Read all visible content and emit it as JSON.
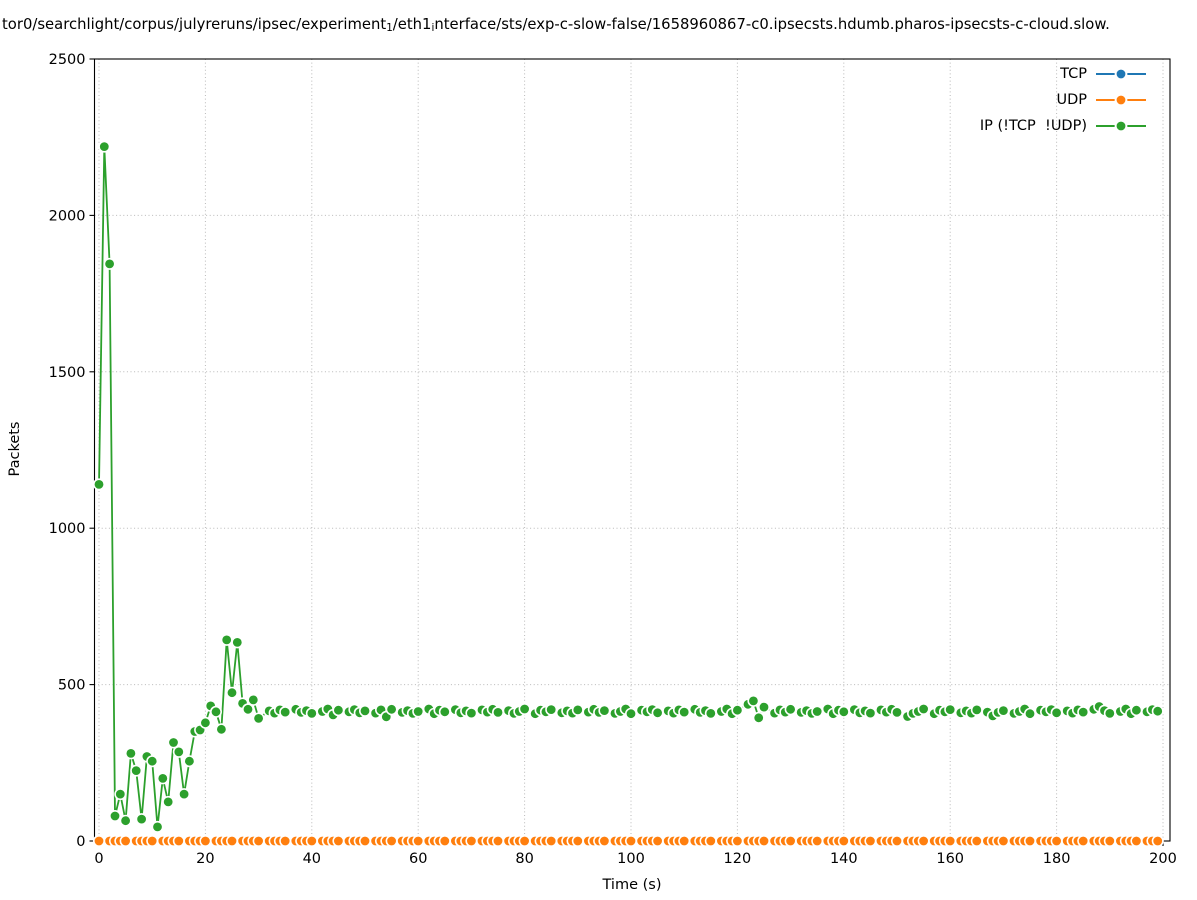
{
  "title": {
    "parts": [
      {
        "text": "tor0/searchlight/corpus/julyreruns/ipsec/experiment",
        "sub": false
      },
      {
        "text": "1",
        "sub": true
      },
      {
        "text": "/eth1",
        "sub": false
      },
      {
        "text": "i",
        "sub": true
      },
      {
        "text": "nterface/sts/exp-c-slow-false/1658960867-c0.ipsecsts.hdumb.pharos-ipsecsts-c-cloud.slow.",
        "sub": false
      }
    ]
  },
  "axes": {
    "xlabel": "Time (s)",
    "ylabel": "Packets",
    "x_ticks": [
      0,
      20,
      40,
      60,
      80,
      100,
      120,
      140,
      160,
      180,
      200
    ],
    "y_ticks": [
      0,
      500,
      1000,
      1500,
      2000,
      2500
    ]
  },
  "legend": {
    "entries": [
      {
        "label": "TCP",
        "color": "#1f77b4"
      },
      {
        "label": "UDP",
        "color": "#ff7f0e"
      },
      {
        "label": "IP (!TCP  !UDP)",
        "color": "#2ca02c"
      }
    ]
  },
  "chart_data": {
    "type": "line",
    "title": "tor0/searchlight/corpus/julyreruns/ipsec/experiment_1/eth1_interface/sts/exp-c-slow-false/1658960867-c0.ipsecsts.hdumb.pharos-ipsecsts-c-cloud.slow.",
    "xlabel": "Time (s)",
    "ylabel": "Packets",
    "xlim": [
      -0.85,
      201.3
    ],
    "ylim": [
      0,
      2500
    ],
    "grid": "dotted at major ticks",
    "grid_color": "#b9b9b9",
    "legend_position": "upper right",
    "marker": "o",
    "marker_edge_color": "#ffffff",
    "series": [
      {
        "name": "TCP",
        "color": "#1f77b4",
        "y_const": 0,
        "x": [
          0,
          2,
          3,
          4,
          5,
          7,
          8,
          9,
          10,
          12,
          13,
          14,
          15,
          17,
          18,
          19,
          20,
          22,
          23,
          24,
          25,
          27,
          28,
          29,
          30,
          32,
          33,
          34,
          35,
          37,
          38,
          39,
          40,
          42,
          43,
          44,
          45,
          47,
          48,
          49,
          50,
          52,
          53,
          54,
          55,
          57,
          58,
          59,
          60,
          62,
          63,
          64,
          65,
          67,
          68,
          69,
          70,
          72,
          73,
          74,
          75,
          77,
          78,
          79,
          80,
          82,
          83,
          84,
          85,
          87,
          88,
          89,
          90,
          92,
          93,
          94,
          95,
          97,
          98,
          99,
          100,
          102,
          103,
          104,
          105,
          107,
          108,
          109,
          110,
          112,
          113,
          114,
          115,
          117,
          118,
          119,
          120,
          122,
          123,
          124,
          125,
          127,
          128,
          129,
          130,
          132,
          133,
          134,
          135,
          137,
          138,
          139,
          140,
          142,
          143,
          144,
          145,
          147,
          148,
          149,
          150,
          152,
          153,
          154,
          155,
          157,
          158,
          159,
          160,
          162,
          163,
          164,
          165,
          167,
          168,
          169,
          170,
          172,
          173,
          174,
          175,
          177,
          178,
          179,
          180,
          182,
          183,
          184,
          185,
          187,
          188,
          189,
          190,
          192,
          193,
          194,
          195,
          197,
          198,
          199
        ]
      },
      {
        "name": "UDP",
        "color": "#ff7f0e",
        "y_const": 0,
        "x": [
          0,
          2,
          3,
          4,
          5,
          7,
          8,
          9,
          10,
          12,
          13,
          14,
          15,
          17,
          18,
          19,
          20,
          22,
          23,
          24,
          25,
          27,
          28,
          29,
          30,
          32,
          33,
          34,
          35,
          37,
          38,
          39,
          40,
          42,
          43,
          44,
          45,
          47,
          48,
          49,
          50,
          52,
          53,
          54,
          55,
          57,
          58,
          59,
          60,
          62,
          63,
          64,
          65,
          67,
          68,
          69,
          70,
          72,
          73,
          74,
          75,
          77,
          78,
          79,
          80,
          82,
          83,
          84,
          85,
          87,
          88,
          89,
          90,
          92,
          93,
          94,
          95,
          97,
          98,
          99,
          100,
          102,
          103,
          104,
          105,
          107,
          108,
          109,
          110,
          112,
          113,
          114,
          115,
          117,
          118,
          119,
          120,
          122,
          123,
          124,
          125,
          127,
          128,
          129,
          130,
          132,
          133,
          134,
          135,
          137,
          138,
          139,
          140,
          142,
          143,
          144,
          145,
          147,
          148,
          149,
          150,
          152,
          153,
          154,
          155,
          157,
          158,
          159,
          160,
          162,
          163,
          164,
          165,
          167,
          168,
          169,
          170,
          172,
          173,
          174,
          175,
          177,
          178,
          179,
          180,
          182,
          183,
          184,
          185,
          187,
          188,
          189,
          190,
          192,
          193,
          194,
          195,
          197,
          198,
          199
        ]
      },
      {
        "name": "IP (!TCP  !UDP)",
        "color": "#2ca02c",
        "x": [
          0,
          1,
          2,
          3,
          4,
          5,
          6,
          7,
          8,
          9,
          10,
          11,
          12,
          13,
          14,
          15,
          16,
          17,
          18,
          19,
          20,
          21,
          22,
          23,
          24,
          25,
          26,
          27,
          28,
          29,
          30,
          32,
          33,
          34,
          35,
          37,
          38,
          39,
          40,
          42,
          43,
          44,
          45,
          47,
          48,
          49,
          50,
          52,
          53,
          54,
          55,
          57,
          58,
          59,
          60,
          62,
          63,
          64,
          65,
          67,
          68,
          69,
          70,
          72,
          73,
          74,
          75,
          77,
          78,
          79,
          80,
          82,
          83,
          84,
          85,
          87,
          88,
          89,
          90,
          92,
          93,
          94,
          95,
          97,
          98,
          99,
          100,
          102,
          103,
          104,
          105,
          107,
          108,
          109,
          110,
          112,
          113,
          114,
          115,
          117,
          118,
          119,
          120,
          122,
          123,
          124,
          125,
          127,
          128,
          129,
          130,
          132,
          133,
          134,
          135,
          137,
          138,
          139,
          140,
          142,
          143,
          144,
          145,
          147,
          148,
          149,
          150,
          152,
          153,
          154,
          155,
          157,
          158,
          159,
          160,
          162,
          163,
          164,
          165,
          167,
          168,
          169,
          170,
          172,
          173,
          174,
          175,
          177,
          178,
          179,
          180,
          182,
          183,
          184,
          185,
          187,
          188,
          189,
          190,
          192,
          193,
          194,
          195,
          197,
          198,
          199
        ],
        "y": [
          1140,
          2220,
          1845,
          80,
          150,
          65,
          280,
          225,
          70,
          270,
          255,
          45,
          200,
          125,
          315,
          285,
          150,
          255,
          350,
          355,
          378,
          432,
          413,
          357,
          643,
          474,
          635,
          440,
          421,
          451,
          392,
          416,
          409,
          419,
          412,
          421,
          411,
          417,
          408,
          414,
          422,
          403,
          418,
          413,
          420,
          410,
          416,
          409,
          419,
          397,
          421,
          411,
          417,
          408,
          414,
          422,
          407,
          418,
          413,
          420,
          410,
          416,
          409,
          419,
          412,
          421,
          411,
          417,
          408,
          414,
          422,
          407,
          418,
          413,
          420,
          410,
          416,
          409,
          419,
          412,
          421,
          411,
          417,
          408,
          414,
          422,
          407,
          418,
          413,
          420,
          410,
          416,
          409,
          419,
          412,
          421,
          411,
          417,
          408,
          414,
          422,
          407,
          418,
          437,
          448,
          394,
          428,
          409,
          419,
          412,
          421,
          411,
          417,
          408,
          414,
          422,
          407,
          418,
          413,
          420,
          410,
          416,
          409,
          419,
          412,
          421,
          411,
          398,
          408,
          414,
          422,
          407,
          418,
          413,
          420,
          410,
          416,
          409,
          419,
          412,
          400,
          411,
          417,
          408,
          414,
          422,
          407,
          418,
          413,
          420,
          410,
          416,
          409,
          419,
          412,
          421,
          430,
          417,
          408,
          414,
          422,
          407,
          418,
          413,
          420,
          415
        ]
      }
    ]
  }
}
